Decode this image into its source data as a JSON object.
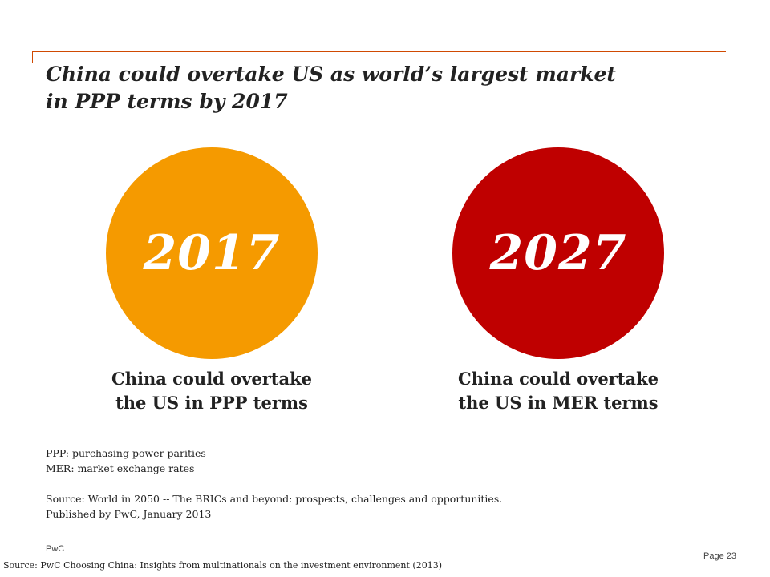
{
  "slide": {
    "title_line1": "China could overtake US as world’s largest market",
    "title_line2": "in PPP terms by 2017",
    "accent_color": "#d04a02"
  },
  "circles": [
    {
      "year": "2017",
      "color": "#f59a00",
      "caption_line1": "China could overtake",
      "caption_line2": "the US in PPP terms"
    },
    {
      "year": "2027",
      "color": "#bf0000",
      "caption_line1": "China could overtake",
      "caption_line2": "the US in MER terms"
    }
  ],
  "notes": {
    "ppp": "PPP: purchasing power parities",
    "mer": "MER: market exchange rates",
    "source_line1": "Source: World in 2050 -- The BRICs and beyond: prospects, challenges and opportunities.",
    "source_line2": "Published by PwC, January 2013"
  },
  "footer": {
    "brand": "PwC",
    "page": "Page 23",
    "source": "Source: PwC Choosing China: Insights from multinationals on the investment environment (2013)"
  }
}
